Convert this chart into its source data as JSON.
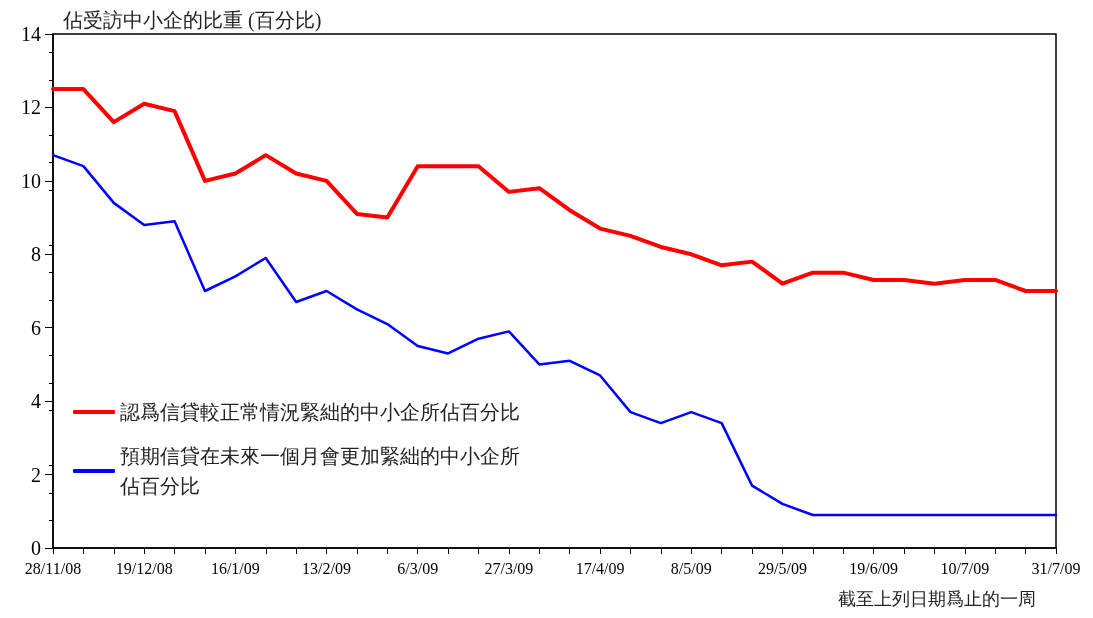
{
  "chart_data": {
    "type": "line",
    "ylabel": "佔受訪中小企的比重 (百分比)",
    "xlabel": "截至上列日期爲止的一周",
    "categories": [
      "28/11/08",
      null,
      null,
      "19/12/08",
      null,
      null,
      "16/1/09",
      null,
      null,
      "13/2/09",
      null,
      null,
      "6/3/09",
      null,
      null,
      "27/3/09",
      null,
      null,
      "17/4/09",
      null,
      null,
      "8/5/09",
      null,
      null,
      "29/5/09",
      null,
      null,
      "19/6/09",
      null,
      null,
      "10/7/09",
      null,
      null,
      "31/7/09"
    ],
    "series": [
      {
        "name": "認爲信貸較正常情況緊絀的中小企所佔百分比",
        "color": "#ff0000",
        "values": [
          12.5,
          12.5,
          11.6,
          12.1,
          11.9,
          10.0,
          10.2,
          10.7,
          10.2,
          10.0,
          9.1,
          9.0,
          10.4,
          10.4,
          10.4,
          9.7,
          9.8,
          9.2,
          8.7,
          8.5,
          8.2,
          8.0,
          7.7,
          7.8,
          7.2,
          7.5,
          7.5,
          7.3,
          7.3,
          7.2,
          7.3,
          7.3,
          7.0,
          7.0
        ]
      },
      {
        "name": "預期信貸在未來一個月會更加緊絀的中小企所佔百分比",
        "color": "#0000ff",
        "values": [
          10.7,
          10.4,
          9.4,
          8.8,
          8.9,
          7.0,
          7.4,
          7.9,
          6.7,
          7.0,
          6.5,
          6.1,
          5.5,
          5.3,
          5.7,
          5.9,
          5.0,
          5.1,
          4.7,
          3.7,
          3.4,
          3.7,
          3.4,
          1.7,
          1.2,
          0.9,
          0.9,
          0.9,
          0.9,
          0.9,
          0.9,
          0.9,
          0.9,
          0.9
        ]
      }
    ],
    "ylim": [
      0,
      14
    ],
    "yticks": [
      0,
      2,
      4,
      6,
      8,
      10,
      12,
      14
    ],
    "grid": false,
    "legend": "bottom left",
    "marker": "none",
    "line_style": "solid"
  }
}
